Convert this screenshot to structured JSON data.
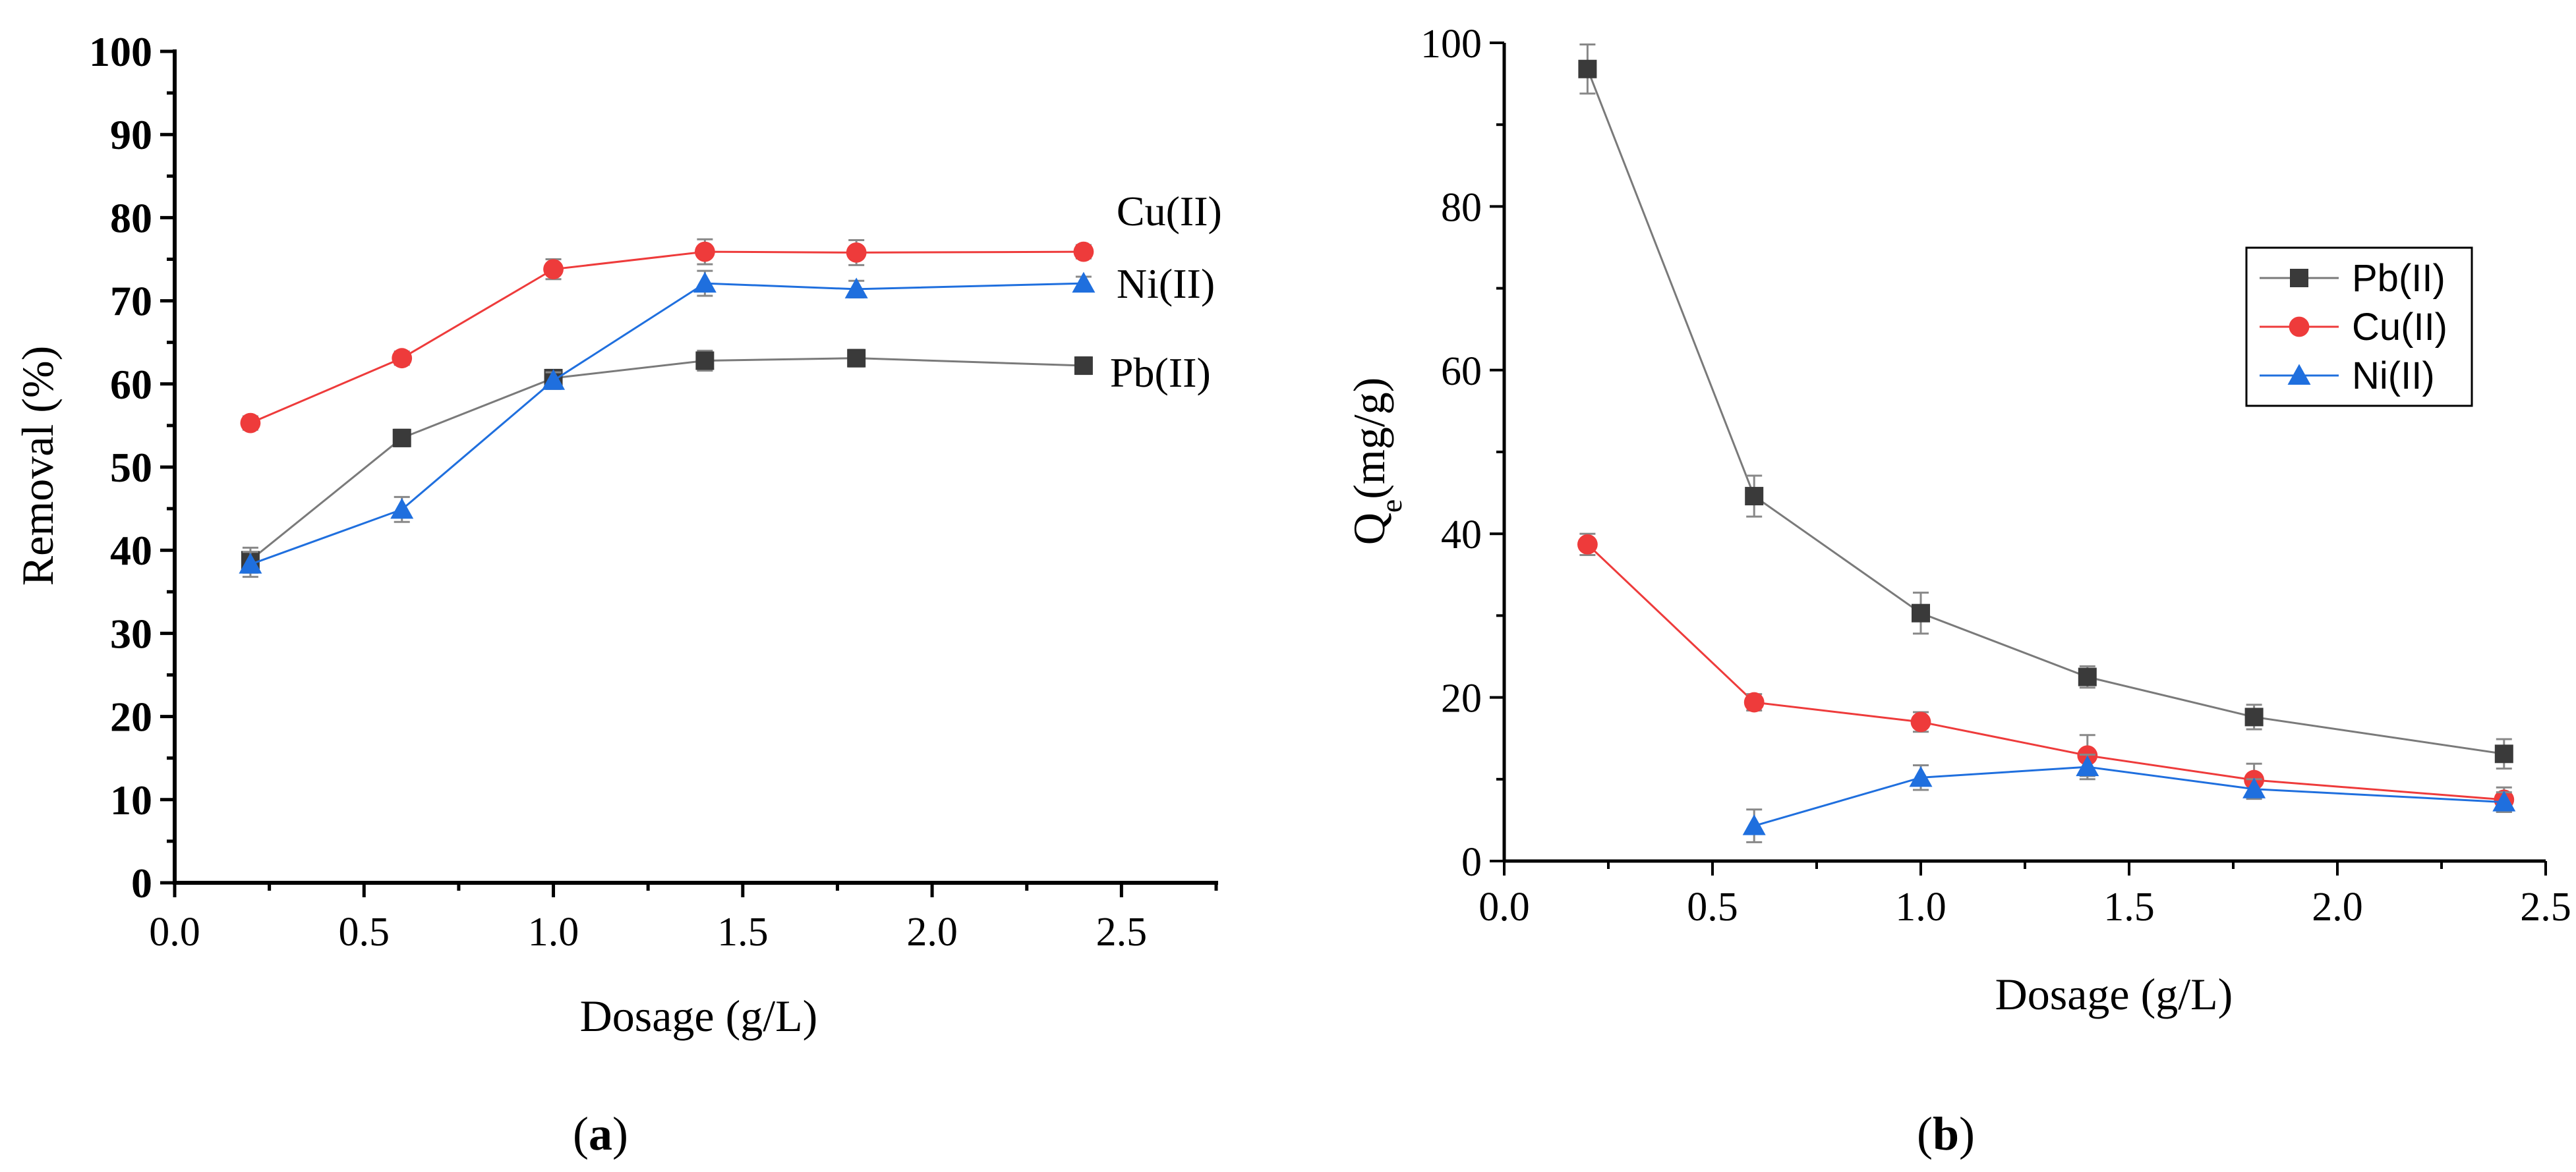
{
  "colors": {
    "Pb(II)": "#3a3a3a",
    "Cu(II)": "#ee3b3b",
    "Ni(II)": "#1f6fde",
    "line_pb": "#7a7a7a"
  },
  "chart_data": [
    {
      "type": "line",
      "panel": "a",
      "panel_label": {
        "open": "(",
        "letter": "a",
        "close": ")"
      },
      "xlabel": "Dosage (g/L)",
      "ylabel": "Removal (%)",
      "xlim": [
        0.0,
        2.75
      ],
      "ylim": [
        0,
        100
      ],
      "xticks": [
        "0.0",
        "0.5",
        "1.0",
        "1.5",
        "2.0",
        "2.5"
      ],
      "yticks": [
        "0",
        "10",
        "20",
        "30",
        "40",
        "50",
        "60",
        "70",
        "80",
        "90",
        "100"
      ],
      "legend": "inline labels at line ends",
      "series": [
        {
          "name": "Pb(II)",
          "marker": "square",
          "x": [
            0.2,
            0.6,
            1.0,
            1.4,
            1.8,
            2.4
          ],
          "y": [
            38.8,
            53.5,
            60.7,
            62.8,
            63.1,
            62.2
          ],
          "err": [
            1.5,
            1.0,
            1.0,
            1.2,
            1.0,
            1.0
          ]
        },
        {
          "name": "Cu(II)",
          "marker": "circle",
          "x": [
            0.2,
            0.6,
            1.0,
            1.4,
            1.8,
            2.4
          ],
          "y": [
            55.3,
            63.1,
            73.8,
            75.9,
            75.8,
            75.9
          ],
          "err": [
            0.8,
            0.8,
            1.2,
            1.5,
            1.5,
            0.8
          ]
        },
        {
          "name": "Ni(II)",
          "marker": "triangle",
          "x": [
            0.2,
            0.6,
            1.0,
            1.4,
            1.8,
            2.4
          ],
          "y": [
            38.3,
            44.9,
            60.4,
            72.1,
            71.4,
            72.1
          ],
          "err": [
            1.5,
            1.5,
            1.0,
            1.5,
            1.0,
            0.8
          ]
        }
      ]
    },
    {
      "type": "line",
      "panel": "b",
      "panel_label": {
        "open": "(",
        "letter": "b",
        "close": ")"
      },
      "xlabel": "Dosage (g/L)",
      "ylabel_main": "Q",
      "ylabel_sub": "e",
      "ylabel_unit": "(mg/g)",
      "xlim": [
        0.0,
        2.5
      ],
      "ylim": [
        0,
        100
      ],
      "xticks": [
        "0.0",
        "0.5",
        "1.0",
        "1.5",
        "2.0",
        "2.5"
      ],
      "yticks": [
        "0",
        "20",
        "40",
        "60",
        "80",
        "100"
      ],
      "legend": "right",
      "series": [
        {
          "name": "Pb(II)",
          "marker": "square",
          "x": [
            0.2,
            0.6,
            1.0,
            1.4,
            1.8,
            2.4
          ],
          "y": [
            96.8,
            44.6,
            30.3,
            22.5,
            17.6,
            13.1
          ],
          "err": [
            3.0,
            2.5,
            2.5,
            1.3,
            1.5,
            1.8
          ]
        },
        {
          "name": "Cu(II)",
          "marker": "circle",
          "x": [
            0.2,
            0.6,
            1.0,
            1.4,
            1.8,
            2.4
          ],
          "y": [
            38.7,
            19.4,
            17.0,
            12.9,
            9.9,
            7.5
          ],
          "err": [
            1.3,
            1.0,
            1.2,
            2.5,
            2.0,
            1.5
          ]
        },
        {
          "name": "Ni(II)",
          "marker": "triangle",
          "x": [
            0.6,
            1.0,
            1.4,
            1.8,
            2.4
          ],
          "y": [
            4.3,
            10.2,
            11.5,
            8.8,
            7.2
          ],
          "err": [
            2.0,
            1.5,
            1.5,
            1.2,
            1.2
          ]
        }
      ]
    }
  ]
}
